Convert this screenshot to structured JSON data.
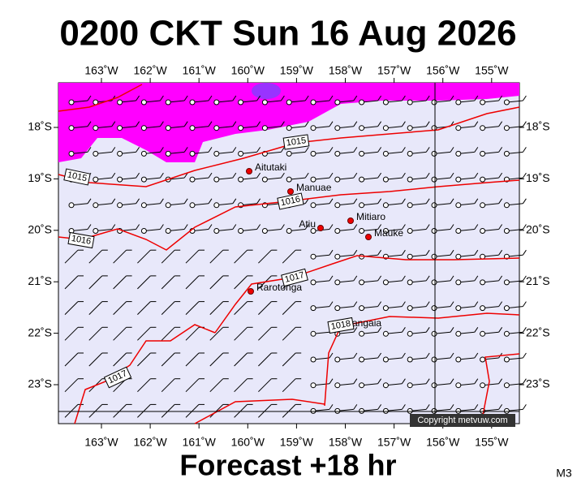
{
  "header": {
    "title": "0200 CKT Sun 16 Aug 2026"
  },
  "axes": {
    "lon_labels": [
      "163˚W",
      "162˚W",
      "161˚W",
      "160˚W",
      "159˚W",
      "158˚W",
      "157˚W",
      "156˚W",
      "155˚W"
    ],
    "lat_labels": [
      "18˚S",
      "19˚S",
      "20˚S",
      "21˚S",
      "22˚S",
      "23˚S"
    ]
  },
  "places": [
    "Aitutaki",
    "Manuae",
    "Atiu",
    "Mitiaro",
    "Mauke",
    "Rarotonga",
    "Mangaia"
  ],
  "isobar_labels": [
    "1015",
    "1015",
    "1016",
    "1016",
    "1017",
    "1017",
    "1018"
  ],
  "copyright": "Copyright metvuw.com",
  "footer": {
    "text": "Forecast +18 hr",
    "model": "M3"
  }
}
